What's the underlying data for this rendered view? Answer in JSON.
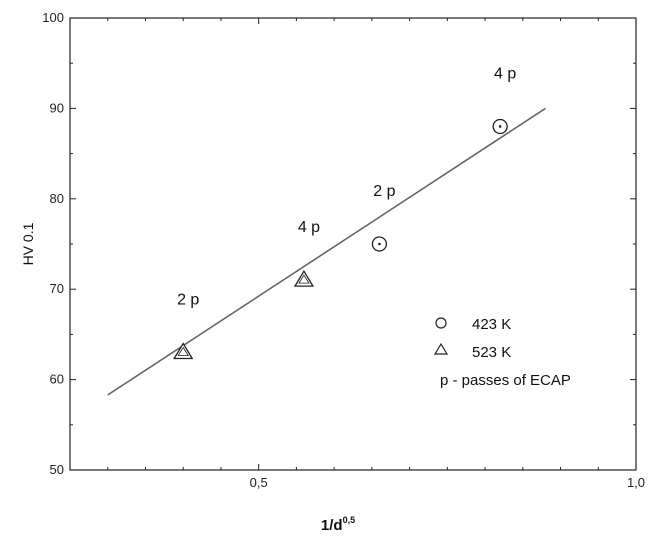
{
  "chart_data": {
    "type": "scatter",
    "xlabel": "1/d",
    "xlabel_superscript": "0,5",
    "ylabel": "HV 0.1",
    "xlim": [
      0.25,
      1.0
    ],
    "ylim": [
      50,
      100
    ],
    "x_ticks": [
      0.5,
      1.0
    ],
    "x_tick_labels": [
      "0,5",
      "1,0"
    ],
    "y_ticks": [
      50,
      60,
      70,
      80,
      90,
      100
    ],
    "y_tick_labels": [
      "50",
      "60",
      "70",
      "80",
      "90",
      "100"
    ],
    "series": [
      {
        "name": "423 K",
        "marker": "circle-dot",
        "points": [
          {
            "x": 0.66,
            "y": 75,
            "label": "2 p"
          },
          {
            "x": 0.82,
            "y": 88,
            "label": "4 p"
          }
        ]
      },
      {
        "name": "523 K",
        "marker": "triangle",
        "points": [
          {
            "x": 0.4,
            "y": 63,
            "label": "2 p"
          },
          {
            "x": 0.56,
            "y": 71,
            "label": "4 p"
          }
        ]
      }
    ],
    "fit_line": {
      "x": [
        0.3,
        0.88
      ],
      "y": [
        58.3,
        90.0
      ],
      "color": "#666666"
    },
    "legend": {
      "position": "right",
      "entries": [
        {
          "marker": "circle",
          "text": "423 K"
        },
        {
          "marker": "triangle",
          "text": "523 K"
        }
      ],
      "note": "p - passes of ECAP"
    },
    "grid": false
  }
}
